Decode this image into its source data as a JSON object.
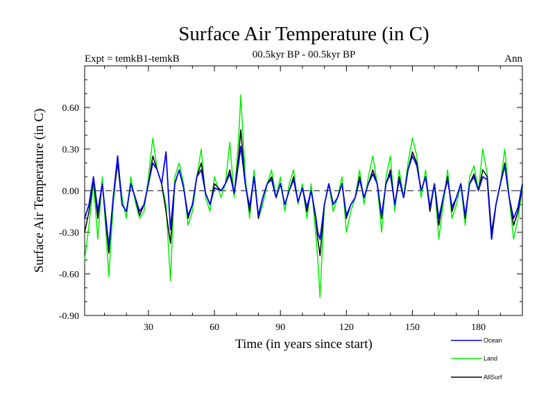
{
  "chart_data": {
    "type": "line",
    "title": "Surface Air Temperature (in C)",
    "subtitle_left": "Expt = temkB1-temkB",
    "subtitle_center": "00.5kyr BP - 00.5kyr BP",
    "subtitle_right": "Ann",
    "xlabel": "Time (in years since start)",
    "ylabel": "Surface Air Temperature (in C)",
    "xlim": [
      1,
      200
    ],
    "ylim": [
      -0.9,
      0.9
    ],
    "xticks": [
      30,
      60,
      90,
      120,
      150,
      180
    ],
    "xtick_labels": [
      "30",
      "60",
      "90",
      "120",
      "150",
      "180"
    ],
    "yticks": [
      -0.9,
      -0.6,
      -0.3,
      0.0,
      0.3,
      0.6
    ],
    "ytick_labels": [
      "-0.90",
      "-0.60",
      "-0.30",
      "0.00",
      "0.30",
      "0.60"
    ],
    "reference_line": 0.0,
    "series": [
      {
        "name": "Land",
        "color": "#00ee00",
        "points": [
          [
            1,
            -0.5
          ],
          [
            3,
            -0.25
          ],
          [
            5,
            0.05
          ],
          [
            7,
            -0.35
          ],
          [
            9,
            0.1
          ],
          [
            12,
            -0.62
          ],
          [
            14,
            -0.1
          ],
          [
            16,
            0.22
          ],
          [
            18,
            -0.05
          ],
          [
            20,
            -0.2
          ],
          [
            22,
            0.1
          ],
          [
            24,
            -0.08
          ],
          [
            26,
            -0.2
          ],
          [
            28,
            -0.15
          ],
          [
            30,
            0.1
          ],
          [
            32,
            0.38
          ],
          [
            34,
            0.15
          ],
          [
            36,
            0.05
          ],
          [
            38,
            -0.1
          ],
          [
            40,
            -0.65
          ],
          [
            42,
            0.1
          ],
          [
            44,
            0.2
          ],
          [
            46,
            0.05
          ],
          [
            48,
            -0.25
          ],
          [
            50,
            -0.15
          ],
          [
            52,
            0.1
          ],
          [
            54,
            0.3
          ],
          [
            56,
            -0.05
          ],
          [
            58,
            -0.15
          ],
          [
            60,
            0.1
          ],
          [
            63,
            -0.05
          ],
          [
            65,
            0.05
          ],
          [
            67,
            0.35
          ],
          [
            69,
            -0.05
          ],
          [
            71,
            0.38
          ],
          [
            72,
            0.69
          ],
          [
            74,
            0.1
          ],
          [
            76,
            -0.2
          ],
          [
            78,
            0.15
          ],
          [
            80,
            -0.2
          ],
          [
            82,
            -0.1
          ],
          [
            84,
            0.05
          ],
          [
            86,
            0.15
          ],
          [
            88,
            -0.05
          ],
          [
            90,
            0.1
          ],
          [
            92,
            -0.15
          ],
          [
            94,
            0.05
          ],
          [
            96,
            0.15
          ],
          [
            98,
            -0.1
          ],
          [
            100,
            0.05
          ],
          [
            102,
            -0.2
          ],
          [
            104,
            0.05
          ],
          [
            106,
            -0.3
          ],
          [
            107,
            -0.5
          ],
          [
            108,
            -0.77
          ],
          [
            110,
            -0.1
          ],
          [
            112,
            0.05
          ],
          [
            114,
            -0.15
          ],
          [
            116,
            -0.05
          ],
          [
            118,
            0.1
          ],
          [
            120,
            -0.3
          ],
          [
            122,
            -0.15
          ],
          [
            124,
            -0.05
          ],
          [
            126,
            0.15
          ],
          [
            128,
            -0.1
          ],
          [
            130,
            0.1
          ],
          [
            132,
            0.25
          ],
          [
            134,
            0.05
          ],
          [
            136,
            -0.3
          ],
          [
            138,
            0.1
          ],
          [
            140,
            0.25
          ],
          [
            142,
            -0.15
          ],
          [
            144,
            0.15
          ],
          [
            146,
            -0.05
          ],
          [
            148,
            0.2
          ],
          [
            150,
            0.38
          ],
          [
            152,
            0.25
          ],
          [
            154,
            -0.05
          ],
          [
            156,
            0.15
          ],
          [
            158,
            -0.15
          ],
          [
            160,
            0.05
          ],
          [
            162,
            -0.35
          ],
          [
            164,
            -0.1
          ],
          [
            166,
            0.15
          ],
          [
            168,
            -0.2
          ],
          [
            170,
            -0.1
          ],
          [
            172,
            0.05
          ],
          [
            174,
            -0.25
          ],
          [
            176,
            0.1
          ],
          [
            178,
            0.18
          ],
          [
            180,
            0.0
          ],
          [
            182,
            0.3
          ],
          [
            184,
            0.12
          ],
          [
            186,
            -0.35
          ],
          [
            188,
            -0.1
          ],
          [
            190,
            0.05
          ],
          [
            192,
            0.3
          ],
          [
            194,
            -0.05
          ],
          [
            196,
            -0.35
          ],
          [
            198,
            -0.2
          ],
          [
            200,
            0.02
          ]
        ]
      },
      {
        "name": "AllSurf",
        "color": "#000000",
        "points": [
          [
            1,
            -0.3
          ],
          [
            3,
            -0.15
          ],
          [
            5,
            0.08
          ],
          [
            7,
            -0.2
          ],
          [
            9,
            0.05
          ],
          [
            12,
            -0.45
          ],
          [
            14,
            -0.05
          ],
          [
            16,
            0.2
          ],
          [
            18,
            -0.1
          ],
          [
            20,
            -0.15
          ],
          [
            22,
            0.05
          ],
          [
            24,
            -0.05
          ],
          [
            26,
            -0.18
          ],
          [
            28,
            -0.1
          ],
          [
            30,
            0.05
          ],
          [
            32,
            0.25
          ],
          [
            34,
            0.15
          ],
          [
            36,
            0.05
          ],
          [
            38,
            -0.15
          ],
          [
            40,
            -0.38
          ],
          [
            42,
            0.05
          ],
          [
            44,
            0.15
          ],
          [
            46,
            0.02
          ],
          [
            48,
            -0.2
          ],
          [
            50,
            -0.1
          ],
          [
            52,
            0.1
          ],
          [
            54,
            0.2
          ],
          [
            56,
            -0.02
          ],
          [
            58,
            -0.1
          ],
          [
            60,
            0.05
          ],
          [
            63,
            0.0
          ],
          [
            65,
            0.05
          ],
          [
            67,
            0.15
          ],
          [
            69,
            -0.02
          ],
          [
            71,
            0.25
          ],
          [
            72,
            0.44
          ],
          [
            74,
            0.05
          ],
          [
            76,
            -0.15
          ],
          [
            78,
            0.1
          ],
          [
            80,
            -0.2
          ],
          [
            82,
            -0.05
          ],
          [
            84,
            0.05
          ],
          [
            86,
            0.1
          ],
          [
            88,
            -0.05
          ],
          [
            90,
            0.05
          ],
          [
            92,
            -0.1
          ],
          [
            94,
            0.0
          ],
          [
            96,
            0.1
          ],
          [
            98,
            -0.08
          ],
          [
            100,
            0.02
          ],
          [
            102,
            -0.15
          ],
          [
            104,
            0.0
          ],
          [
            106,
            -0.2
          ],
          [
            107,
            -0.35
          ],
          [
            108,
            -0.47
          ],
          [
            110,
            -0.1
          ],
          [
            112,
            0.05
          ],
          [
            114,
            -0.1
          ],
          [
            116,
            -0.05
          ],
          [
            118,
            0.05
          ],
          [
            120,
            -0.2
          ],
          [
            122,
            -0.1
          ],
          [
            124,
            -0.05
          ],
          [
            126,
            0.1
          ],
          [
            128,
            -0.05
          ],
          [
            130,
            0.05
          ],
          [
            132,
            0.15
          ],
          [
            134,
            0.05
          ],
          [
            136,
            -0.2
          ],
          [
            138,
            0.05
          ],
          [
            140,
            0.15
          ],
          [
            142,
            -0.1
          ],
          [
            144,
            0.1
          ],
          [
            146,
            -0.05
          ],
          [
            148,
            0.15
          ],
          [
            150,
            0.28
          ],
          [
            152,
            0.2
          ],
          [
            154,
            0.0
          ],
          [
            156,
            0.1
          ],
          [
            158,
            -0.15
          ],
          [
            160,
            0.05
          ],
          [
            162,
            -0.25
          ],
          [
            164,
            -0.05
          ],
          [
            166,
            0.1
          ],
          [
            168,
            -0.15
          ],
          [
            170,
            -0.05
          ],
          [
            172,
            0.05
          ],
          [
            174,
            -0.2
          ],
          [
            176,
            0.05
          ],
          [
            178,
            0.12
          ],
          [
            180,
            0.0
          ],
          [
            182,
            0.15
          ],
          [
            184,
            0.1
          ],
          [
            186,
            -0.3
          ],
          [
            188,
            -0.1
          ],
          [
            190,
            0.05
          ],
          [
            192,
            0.2
          ],
          [
            194,
            -0.05
          ],
          [
            196,
            -0.25
          ],
          [
            198,
            -0.15
          ],
          [
            200,
            0.03
          ]
        ]
      },
      {
        "name": "Ocean",
        "color": "#0000ee",
        "points": [
          [
            1,
            -0.2
          ],
          [
            3,
            -0.1
          ],
          [
            5,
            0.1
          ],
          [
            7,
            -0.15
          ],
          [
            9,
            0.05
          ],
          [
            12,
            -0.4
          ],
          [
            14,
            -0.05
          ],
          [
            16,
            0.25
          ],
          [
            18,
            -0.1
          ],
          [
            20,
            -0.15
          ],
          [
            22,
            0.05
          ],
          [
            24,
            -0.05
          ],
          [
            26,
            -0.15
          ],
          [
            28,
            -0.1
          ],
          [
            30,
            0.05
          ],
          [
            32,
            0.2
          ],
          [
            34,
            0.15
          ],
          [
            36,
            0.05
          ],
          [
            38,
            0.28
          ],
          [
            40,
            -0.28
          ],
          [
            42,
            0.05
          ],
          [
            44,
            0.15
          ],
          [
            46,
            0.02
          ],
          [
            48,
            -0.18
          ],
          [
            50,
            -0.1
          ],
          [
            52,
            0.1
          ],
          [
            54,
            0.15
          ],
          [
            56,
            -0.02
          ],
          [
            58,
            -0.1
          ],
          [
            60,
            0.02
          ],
          [
            63,
            0.0
          ],
          [
            65,
            0.05
          ],
          [
            67,
            0.12
          ],
          [
            69,
            -0.02
          ],
          [
            71,
            0.2
          ],
          [
            72,
            0.32
          ],
          [
            74,
            0.05
          ],
          [
            76,
            -0.12
          ],
          [
            78,
            0.1
          ],
          [
            80,
            -0.18
          ],
          [
            82,
            -0.05
          ],
          [
            84,
            0.05
          ],
          [
            86,
            0.08
          ],
          [
            88,
            -0.05
          ],
          [
            90,
            0.05
          ],
          [
            92,
            -0.1
          ],
          [
            94,
            0.0
          ],
          [
            96,
            0.08
          ],
          [
            98,
            -0.08
          ],
          [
            100,
            0.02
          ],
          [
            102,
            -0.12
          ],
          [
            104,
            0.0
          ],
          [
            106,
            -0.18
          ],
          [
            107,
            -0.3
          ],
          [
            108,
            -0.35
          ],
          [
            110,
            -0.1
          ],
          [
            112,
            0.05
          ],
          [
            114,
            -0.1
          ],
          [
            116,
            -0.05
          ],
          [
            118,
            0.05
          ],
          [
            120,
            -0.18
          ],
          [
            122,
            -0.1
          ],
          [
            124,
            -0.05
          ],
          [
            126,
            0.08
          ],
          [
            128,
            -0.05
          ],
          [
            130,
            0.05
          ],
          [
            132,
            0.12
          ],
          [
            134,
            0.05
          ],
          [
            136,
            -0.18
          ],
          [
            138,
            0.05
          ],
          [
            140,
            0.12
          ],
          [
            142,
            -0.1
          ],
          [
            144,
            0.08
          ],
          [
            146,
            -0.05
          ],
          [
            148,
            0.15
          ],
          [
            150,
            0.25
          ],
          [
            152,
            0.18
          ],
          [
            154,
            0.0
          ],
          [
            156,
            0.1
          ],
          [
            158,
            -0.12
          ],
          [
            160,
            0.05
          ],
          [
            162,
            -0.2
          ],
          [
            164,
            -0.05
          ],
          [
            166,
            0.08
          ],
          [
            168,
            -0.12
          ],
          [
            170,
            -0.05
          ],
          [
            172,
            0.05
          ],
          [
            174,
            -0.18
          ],
          [
            176,
            0.05
          ],
          [
            178,
            0.1
          ],
          [
            180,
            0.0
          ],
          [
            182,
            0.1
          ],
          [
            184,
            0.08
          ],
          [
            186,
            -0.35
          ],
          [
            188,
            -0.1
          ],
          [
            190,
            0.05
          ],
          [
            192,
            0.18
          ],
          [
            194,
            -0.05
          ],
          [
            196,
            -0.2
          ],
          [
            198,
            -0.12
          ],
          [
            200,
            0.05
          ]
        ]
      }
    ],
    "legend": [
      {
        "name": "Ocean",
        "color": "#0000ee"
      },
      {
        "name": "Land",
        "color": "#00ee00"
      },
      {
        "name": "AllSurf",
        "color": "#000000"
      }
    ],
    "legend_position": "bottom-right"
  }
}
